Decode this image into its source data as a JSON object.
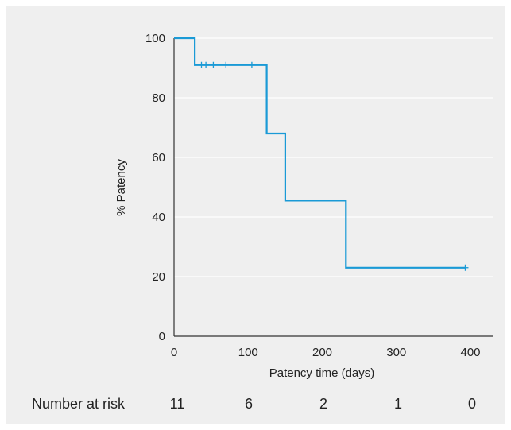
{
  "chart_data": {
    "type": "line",
    "xlabel": "Patency time (days)",
    "ylabel": "% Patency",
    "xlim": [
      0,
      400
    ],
    "ylim": [
      0,
      100
    ],
    "x_ticks": [
      "0",
      "100",
      "200",
      "300",
      "400"
    ],
    "y_ticks": [
      "0",
      "20",
      "40",
      "60",
      "80",
      "100"
    ],
    "grid": "horizontal",
    "line_color": "#1a9ad6",
    "series": [
      {
        "steps": [
          {
            "x": 0,
            "y": 100
          },
          {
            "x": 28,
            "y": 100
          },
          {
            "x": 28,
            "y": 91
          },
          {
            "x": 125,
            "y": 91
          },
          {
            "x": 125,
            "y": 68
          },
          {
            "x": 150,
            "y": 68
          },
          {
            "x": 150,
            "y": 45.5
          },
          {
            "x": 232,
            "y": 45.5
          },
          {
            "x": 232,
            "y": 23
          },
          {
            "x": 393,
            "y": 23
          }
        ],
        "censored": [
          {
            "x": 37,
            "y": 91
          },
          {
            "x": 43,
            "y": 91
          },
          {
            "x": 53,
            "y": 91
          },
          {
            "x": 70,
            "y": 91
          },
          {
            "x": 105,
            "y": 91
          },
          {
            "x": 393,
            "y": 23
          }
        ]
      }
    ],
    "risk_table": {
      "label": "Number at risk",
      "values": [
        "11",
        "6",
        "2",
        "1",
        "0"
      ]
    }
  }
}
